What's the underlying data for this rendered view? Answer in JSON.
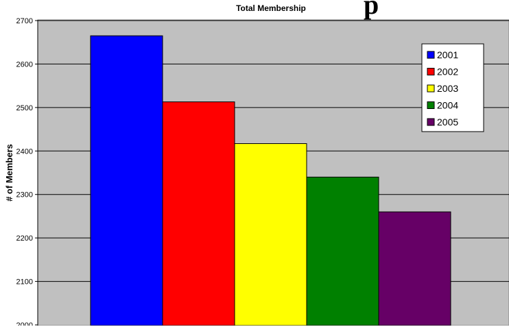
{
  "chart_data": {
    "type": "bar",
    "title": "Total Membership",
    "title_fragment": "p",
    "xlabel": "",
    "ylabel": "# of Members",
    "categories": [
      "2001",
      "2002",
      "2003",
      "2004",
      "2005"
    ],
    "values": [
      2665,
      2513,
      2417,
      2340,
      2260
    ],
    "colors": [
      "#0000ff",
      "#ff0000",
      "#ffff00",
      "#008000",
      "#660066"
    ],
    "ylim": [
      2000,
      2700
    ],
    "yticks": [
      "2000",
      "2100",
      "2200",
      "2300",
      "2400",
      "2500",
      "2600",
      "2700"
    ],
    "grid": true,
    "plot_background": "#c0c0c0",
    "legend": {
      "placement": "top-right",
      "items": [
        "2001",
        "2002",
        "2003",
        "2004",
        "2005"
      ]
    }
  }
}
